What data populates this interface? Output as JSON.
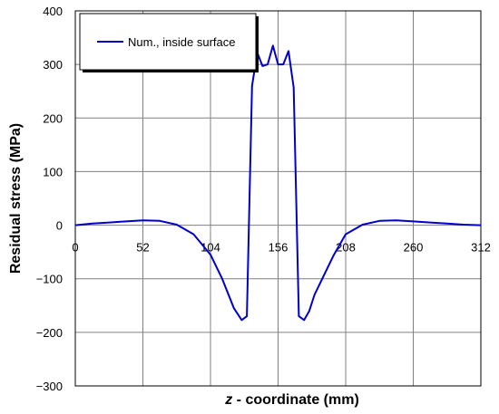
{
  "chart_data": {
    "type": "line",
    "title": "",
    "xlabel_var": "z",
    "xlabel_rest": " - coordinate (mm)",
    "ylabel": "Residual stress (MPa)",
    "xlim": [
      0,
      312
    ],
    "ylim": [
      -300,
      400
    ],
    "x_ticks": [
      0,
      52,
      104,
      156,
      208,
      260,
      312
    ],
    "x_tick_labels": [
      "0",
      "52",
      "104",
      "156",
      "208",
      "260",
      "312"
    ],
    "y_ticks": [
      -300,
      -200,
      -100,
      0,
      100,
      200,
      300,
      400
    ],
    "y_tick_labels": [
      "−300",
      "−200",
      "−100",
      "0",
      "100",
      "200",
      "300",
      "400"
    ],
    "x_tick_labels_position": "at y = 0",
    "grid": true,
    "legend": {
      "position": "top-left",
      "entries": [
        "Num., inside surface"
      ]
    },
    "series": [
      {
        "name": "Num., inside surface",
        "color": "#0000cc",
        "x": [
          0,
          13,
          26,
          39,
          52,
          65,
          78,
          91,
          104,
          113,
          122,
          128,
          132,
          136,
          140,
          144,
          148,
          152,
          156,
          160,
          164,
          168,
          172,
          176,
          180,
          184,
          190,
          199,
          208,
          221,
          234,
          247,
          260,
          273,
          286,
          299,
          312
        ],
        "y": [
          0,
          3,
          5,
          7,
          9,
          8,
          1,
          -17,
          -55,
          -100,
          -155,
          -177,
          -170,
          260,
          322,
          297,
          300,
          335,
          300,
          300,
          325,
          257,
          -170,
          -177,
          -160,
          -130,
          -100,
          -55,
          -17,
          1,
          8,
          9,
          7,
          5,
          3,
          1,
          0
        ]
      }
    ]
  }
}
